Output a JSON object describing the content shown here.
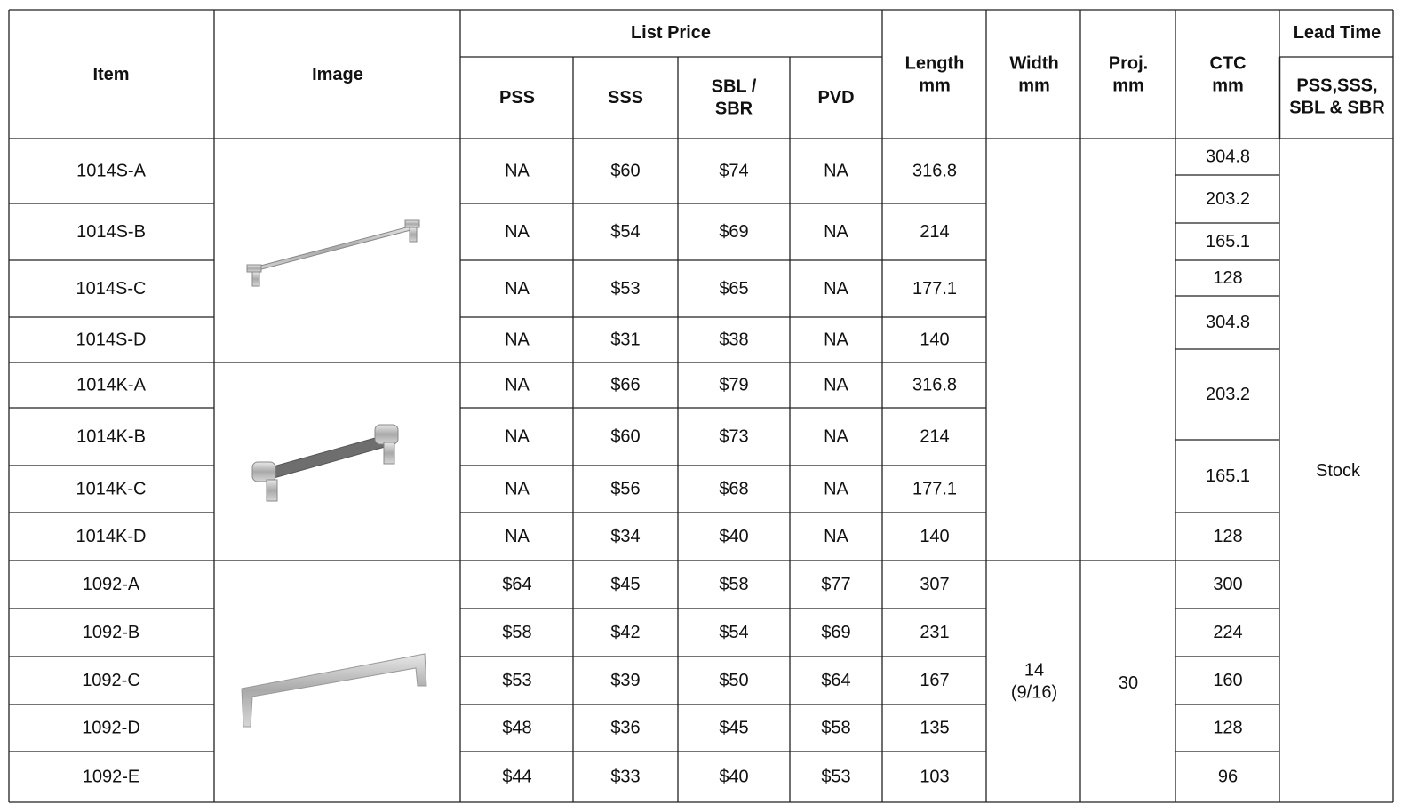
{
  "header": {
    "item": "Item",
    "image": "Image",
    "list_price": "List Price",
    "pss": "PSS",
    "sss": "SSS",
    "sbl_sbr": [
      "SBL /",
      "SBR"
    ],
    "pvd": "PVD",
    "length": [
      "Length",
      "mm"
    ],
    "width": [
      "Width",
      "mm"
    ],
    "proj": [
      "Proj.",
      "mm"
    ],
    "ctc": [
      "CTC",
      "mm"
    ],
    "lead_time": "Lead Time",
    "lead_finishes": [
      "PSS,SSS,",
      "SBL & SBR"
    ]
  },
  "rows": [
    {
      "item": "1014S-A",
      "pss": "NA",
      "sss": "$60",
      "sbl_sbr": "$74",
      "pvd": "NA",
      "length": "316.8"
    },
    {
      "item": "1014S-B",
      "pss": "NA",
      "sss": "$54",
      "sbl_sbr": "$69",
      "pvd": "NA",
      "length": "214"
    },
    {
      "item": "1014S-C",
      "pss": "NA",
      "sss": "$53",
      "sbl_sbr": "$65",
      "pvd": "NA",
      "length": "177.1"
    },
    {
      "item": "1014S-D",
      "pss": "NA",
      "sss": "$31",
      "sbl_sbr": "$38",
      "pvd": "NA",
      "length": "140"
    },
    {
      "item": "1014K-A",
      "pss": "NA",
      "sss": "$66",
      "sbl_sbr": "$79",
      "pvd": "NA",
      "length": "316.8"
    },
    {
      "item": "1014K-B",
      "pss": "NA",
      "sss": "$60",
      "sbl_sbr": "$73",
      "pvd": "NA",
      "length": "214"
    },
    {
      "item": "1014K-C",
      "pss": "NA",
      "sss": "$56",
      "sbl_sbr": "$68",
      "pvd": "NA",
      "length": "177.1"
    },
    {
      "item": "1014K-D",
      "pss": "NA",
      "sss": "$34",
      "sbl_sbr": "$40",
      "pvd": "NA",
      "length": "140"
    },
    {
      "item": "1092-A",
      "pss": "$64",
      "sss": "$45",
      "sbl_sbr": "$58",
      "pvd": "$77",
      "length": "307"
    },
    {
      "item": "1092-B",
      "pss": "$58",
      "sss": "$42",
      "sbl_sbr": "$54",
      "pvd": "$69",
      "length": "231"
    },
    {
      "item": "1092-C",
      "pss": "$53",
      "sss": "$39",
      "sbl_sbr": "$50",
      "pvd": "$64",
      "length": "167"
    },
    {
      "item": "1092-D",
      "pss": "$48",
      "sss": "$36",
      "sbl_sbr": "$45",
      "pvd": "$58",
      "length": "135"
    },
    {
      "item": "1092-E",
      "pss": "$44",
      "sss": "$33",
      "sbl_sbr": "$40",
      "pvd": "$53",
      "length": "103"
    }
  ],
  "ctc": [
    "304.8",
    "203.2",
    "165.1",
    "128",
    "304.8",
    "203.2",
    "165.1",
    "128",
    "300",
    "224",
    "160",
    "128",
    "96"
  ],
  "width_1092": [
    "14",
    "(9/16)"
  ],
  "proj_1092": "30",
  "lead_time": "Stock"
}
